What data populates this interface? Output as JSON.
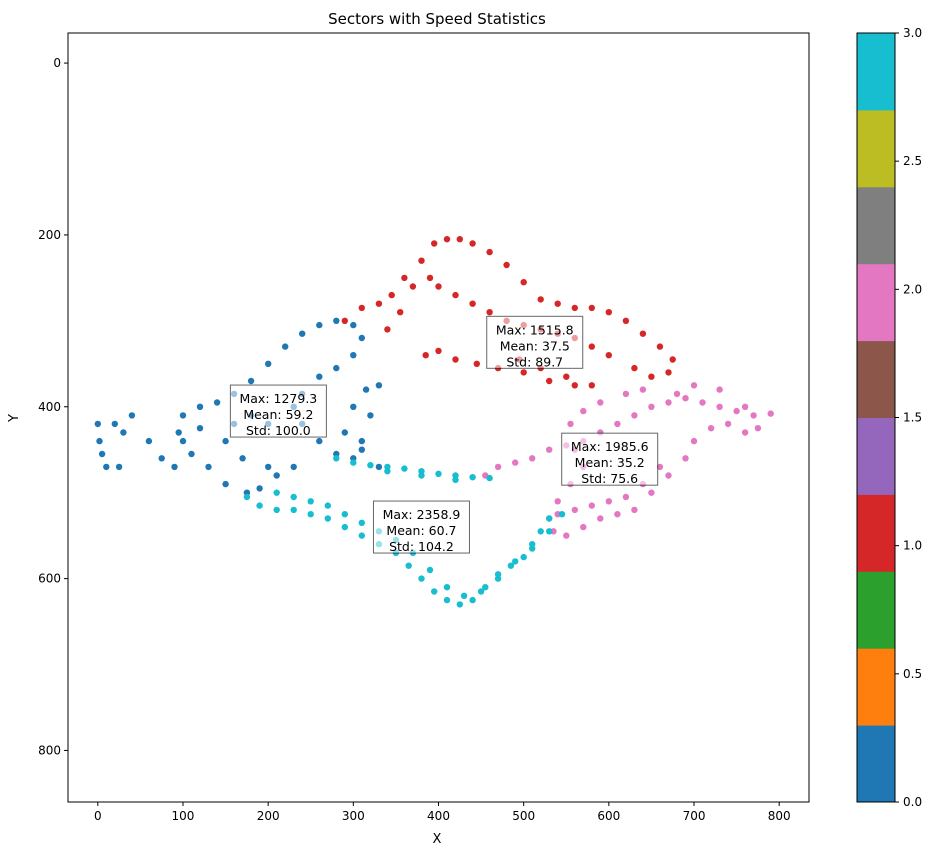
{
  "chart_data": {
    "type": "scatter",
    "title": "Sectors with Speed Statistics",
    "xlabel": "X",
    "ylabel": "Y",
    "xlim": [
      -35,
      835
    ],
    "ylim": [
      860,
      -35
    ],
    "y_inverted": true,
    "x_ticks": [
      "0",
      "100",
      "200",
      "300",
      "400",
      "500",
      "600",
      "700",
      "800"
    ],
    "y_ticks": [
      "0",
      "200",
      "400",
      "600",
      "800"
    ],
    "grid": false,
    "colorbar": {
      "range": [
        0.0,
        3.0
      ],
      "tick_labels": [
        "0.0",
        "0.5",
        "1.0",
        "1.5",
        "2.0",
        "2.5",
        "3.0"
      ],
      "colors": [
        "#1f77b4",
        "#ff7f0e",
        "#2ca02c",
        "#d62728",
        "#9467bd",
        "#8c564b",
        "#e377c2",
        "#7f7f7f",
        "#bcbd22",
        "#17becf"
      ]
    },
    "sectors": [
      {
        "sector": 0,
        "color": "#1f77b4",
        "stats": {
          "line1": "Max: 1279.3",
          "line2": "Mean: 59.2",
          "line3": "Std: 100.0"
        },
        "label_pos": [
          212,
          405
        ],
        "points": [
          [
            0,
            420
          ],
          [
            2,
            440
          ],
          [
            5,
            455
          ],
          [
            10,
            470
          ],
          [
            25,
            470
          ],
          [
            30,
            430
          ],
          [
            20,
            420
          ],
          [
            40,
            410
          ],
          [
            60,
            440
          ],
          [
            75,
            460
          ],
          [
            90,
            470
          ],
          [
            100,
            440
          ],
          [
            100,
            410
          ],
          [
            120,
            400
          ],
          [
            140,
            395
          ],
          [
            160,
            385
          ],
          [
            180,
            370
          ],
          [
            200,
            350
          ],
          [
            220,
            330
          ],
          [
            240,
            315
          ],
          [
            260,
            305
          ],
          [
            280,
            300
          ],
          [
            300,
            305
          ],
          [
            310,
            320
          ],
          [
            300,
            340
          ],
          [
            280,
            355
          ],
          [
            260,
            365
          ],
          [
            240,
            385
          ],
          [
            230,
            400
          ],
          [
            240,
            420
          ],
          [
            260,
            440
          ],
          [
            280,
            455
          ],
          [
            300,
            460
          ],
          [
            330,
            470
          ],
          [
            310,
            450
          ],
          [
            290,
            430
          ],
          [
            300,
            400
          ],
          [
            315,
            380
          ],
          [
            330,
            375
          ],
          [
            320,
            410
          ],
          [
            310,
            440
          ],
          [
            230,
            470
          ],
          [
            210,
            480
          ],
          [
            190,
            495
          ],
          [
            175,
            500
          ],
          [
            150,
            490
          ],
          [
            130,
            470
          ],
          [
            110,
            455
          ],
          [
            95,
            430
          ],
          [
            120,
            425
          ],
          [
            150,
            440
          ],
          [
            170,
            460
          ],
          [
            200,
            470
          ],
          [
            200,
            420
          ],
          [
            180,
            410
          ],
          [
            160,
            420
          ]
        ]
      },
      {
        "sector": 1,
        "color": "#d62728",
        "stats": {
          "line1": "Max: 1515.8",
          "line2": "Mean: 37.5",
          "line3": "Std: 89.7"
        },
        "label_pos": [
          513,
          325
        ],
        "points": [
          [
            290,
            300
          ],
          [
            310,
            285
          ],
          [
            330,
            280
          ],
          [
            345,
            270
          ],
          [
            360,
            250
          ],
          [
            380,
            230
          ],
          [
            395,
            210
          ],
          [
            410,
            205
          ],
          [
            425,
            205
          ],
          [
            440,
            210
          ],
          [
            460,
            220
          ],
          [
            480,
            235
          ],
          [
            500,
            255
          ],
          [
            520,
            275
          ],
          [
            540,
            280
          ],
          [
            560,
            285
          ],
          [
            580,
            285
          ],
          [
            600,
            290
          ],
          [
            620,
            300
          ],
          [
            640,
            315
          ],
          [
            660,
            330
          ],
          [
            675,
            345
          ],
          [
            670,
            360
          ],
          [
            650,
            365
          ],
          [
            630,
            355
          ],
          [
            600,
            340
          ],
          [
            580,
            330
          ],
          [
            560,
            320
          ],
          [
            540,
            315
          ],
          [
            520,
            310
          ],
          [
            500,
            305
          ],
          [
            480,
            300
          ],
          [
            460,
            290
          ],
          [
            440,
            280
          ],
          [
            420,
            270
          ],
          [
            400,
            260
          ],
          [
            390,
            250
          ],
          [
            370,
            260
          ],
          [
            355,
            290
          ],
          [
            340,
            310
          ],
          [
            385,
            340
          ],
          [
            400,
            335
          ],
          [
            420,
            345
          ],
          [
            445,
            350
          ],
          [
            470,
            355
          ],
          [
            500,
            360
          ],
          [
            530,
            370
          ],
          [
            560,
            375
          ],
          [
            580,
            375
          ],
          [
            550,
            365
          ],
          [
            520,
            355
          ],
          [
            495,
            345
          ]
        ]
      },
      {
        "sector": 2,
        "color": "#e377c2",
        "stats": {
          "line1": "Max: 1985.6",
          "line2": "Mean: 35.2",
          "line3": "Std: 75.6"
        },
        "label_pos": [
          601,
          461
        ],
        "points": [
          [
            455,
            480
          ],
          [
            470,
            470
          ],
          [
            490,
            465
          ],
          [
            510,
            460
          ],
          [
            530,
            450
          ],
          [
            550,
            445
          ],
          [
            570,
            440
          ],
          [
            590,
            430
          ],
          [
            610,
            420
          ],
          [
            630,
            410
          ],
          [
            650,
            400
          ],
          [
            670,
            395
          ],
          [
            690,
            390
          ],
          [
            710,
            395
          ],
          [
            730,
            400
          ],
          [
            750,
            405
          ],
          [
            770,
            410
          ],
          [
            790,
            408
          ],
          [
            760,
            400
          ],
          [
            730,
            380
          ],
          [
            700,
            375
          ],
          [
            680,
            385
          ],
          [
            640,
            380
          ],
          [
            620,
            385
          ],
          [
            590,
            395
          ],
          [
            570,
            405
          ],
          [
            555,
            420
          ],
          [
            560,
            450
          ],
          [
            570,
            470
          ],
          [
            555,
            490
          ],
          [
            540,
            510
          ],
          [
            530,
            530
          ],
          [
            535,
            545
          ],
          [
            550,
            550
          ],
          [
            570,
            540
          ],
          [
            590,
            530
          ],
          [
            610,
            525
          ],
          [
            630,
            520
          ],
          [
            650,
            500
          ],
          [
            670,
            480
          ],
          [
            690,
            460
          ],
          [
            700,
            440
          ],
          [
            720,
            425
          ],
          [
            740,
            420
          ],
          [
            760,
            430
          ],
          [
            775,
            425
          ],
          [
            660,
            470
          ],
          [
            640,
            490
          ],
          [
            620,
            505
          ],
          [
            600,
            510
          ],
          [
            580,
            515
          ],
          [
            560,
            520
          ],
          [
            540,
            525
          ]
        ]
      },
      {
        "sector": 3,
        "color": "#17becf",
        "stats": {
          "line1": "Max: 2358.9",
          "line2": "Mean: 60.7",
          "line3": "Std: 104.2"
        },
        "label_pos": [
          380,
          540
        ],
        "points": [
          [
            280,
            460
          ],
          [
            300,
            465
          ],
          [
            320,
            468
          ],
          [
            340,
            470
          ],
          [
            360,
            472
          ],
          [
            380,
            475
          ],
          [
            400,
            478
          ],
          [
            420,
            480
          ],
          [
            440,
            482
          ],
          [
            460,
            483
          ],
          [
            420,
            485
          ],
          [
            380,
            480
          ],
          [
            340,
            475
          ],
          [
            175,
            505
          ],
          [
            190,
            515
          ],
          [
            210,
            520
          ],
          [
            230,
            520
          ],
          [
            250,
            525
          ],
          [
            270,
            530
          ],
          [
            290,
            540
          ],
          [
            310,
            550
          ],
          [
            330,
            560
          ],
          [
            350,
            570
          ],
          [
            365,
            585
          ],
          [
            380,
            600
          ],
          [
            395,
            615
          ],
          [
            410,
            625
          ],
          [
            425,
            630
          ],
          [
            440,
            625
          ],
          [
            455,
            610
          ],
          [
            470,
            595
          ],
          [
            485,
            585
          ],
          [
            500,
            575
          ],
          [
            510,
            560
          ],
          [
            520,
            545
          ],
          [
            530,
            530
          ],
          [
            545,
            525
          ],
          [
            530,
            545
          ],
          [
            510,
            565
          ],
          [
            490,
            580
          ],
          [
            470,
            600
          ],
          [
            450,
            615
          ],
          [
            430,
            620
          ],
          [
            410,
            610
          ],
          [
            390,
            590
          ],
          [
            370,
            570
          ],
          [
            350,
            555
          ],
          [
            330,
            545
          ],
          [
            310,
            535
          ],
          [
            290,
            525
          ],
          [
            270,
            515
          ],
          [
            250,
            510
          ],
          [
            230,
            505
          ],
          [
            210,
            500
          ]
        ]
      }
    ]
  }
}
